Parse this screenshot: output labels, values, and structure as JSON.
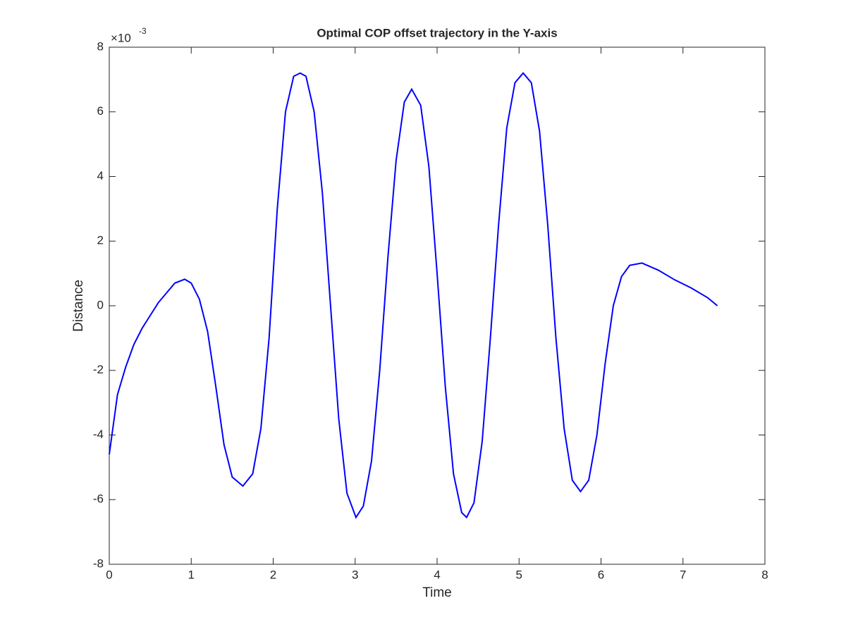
{
  "chart_data": {
    "type": "line",
    "title": "Optimal COP offset trajectory in the Y-axis",
    "x_label": "Time",
    "y_label": "Distance",
    "y_exponent_base": "×10",
    "y_exponent": "-3",
    "xlim": [
      0,
      8
    ],
    "xticks": [
      0,
      1,
      2,
      3,
      4,
      5,
      6,
      7,
      8
    ],
    "ylim": [
      -8,
      8
    ],
    "yticks": [
      -8,
      -6,
      -4,
      -2,
      0,
      2,
      4,
      6,
      8
    ],
    "grid": false,
    "series": [
      {
        "color": "#0000ff",
        "x": [
          0,
          0.1,
          0.2,
          0.3,
          0.4,
          0.5,
          0.6,
          0.7,
          0.8,
          0.92,
          1.0,
          1.1,
          1.2,
          1.3,
          1.4,
          1.5,
          1.63,
          1.75,
          1.85,
          1.95,
          2.05,
          2.15,
          2.25,
          2.33,
          2.4,
          2.5,
          2.6,
          2.7,
          2.8,
          2.9,
          3.01,
          3.1,
          3.2,
          3.3,
          3.4,
          3.5,
          3.6,
          3.69,
          3.8,
          3.9,
          4.0,
          4.1,
          4.2,
          4.3,
          4.36,
          4.45,
          4.55,
          4.65,
          4.75,
          4.85,
          4.95,
          5.05,
          5.15,
          5.25,
          5.35,
          5.45,
          5.55,
          5.65,
          5.75,
          5.85,
          5.95,
          6.05,
          6.15,
          6.25,
          6.35,
          6.5,
          6.7,
          6.9,
          7.1,
          7.3,
          7.42
        ],
        "values": [
          -4.6,
          -2.75,
          -1.9,
          -1.2,
          -0.7,
          -0.3,
          0.1,
          0.4,
          0.7,
          0.82,
          0.7,
          0.2,
          -0.8,
          -2.5,
          -4.3,
          -5.3,
          -5.58,
          -5.2,
          -3.8,
          -1,
          3,
          6,
          7.1,
          7.2,
          7.1,
          6,
          3.5,
          0,
          -3.5,
          -5.8,
          -6.55,
          -6.2,
          -4.8,
          -2,
          1.5,
          4.5,
          6.3,
          6.7,
          6.2,
          4.3,
          1,
          -2.5,
          -5.2,
          -6.4,
          -6.55,
          -6.1,
          -4.2,
          -1,
          2.5,
          5.5,
          6.9,
          7.2,
          6.9,
          5.4,
          2.5,
          -1,
          -3.8,
          -5.4,
          -5.75,
          -5.4,
          -4,
          -1.8,
          0,
          0.9,
          1.25,
          1.32,
          1.1,
          0.8,
          0.55,
          0.25,
          0
        ]
      }
    ]
  }
}
